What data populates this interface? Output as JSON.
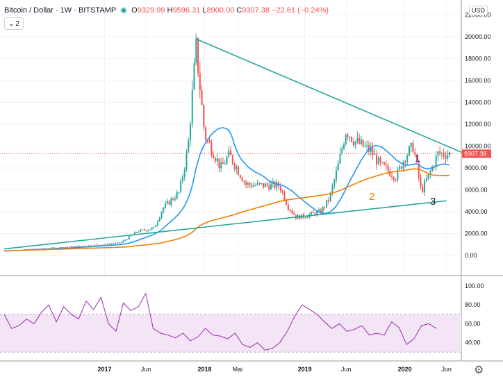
{
  "header": {
    "symbol": "Bitcoin / Dollar · 1W · BITSTAMP",
    "open_label": "O",
    "open": "9329.99",
    "high_label": "H",
    "high": "9596.31",
    "low_label": "L",
    "low": "8900.00",
    "close_label": "C",
    "close": "9307.38",
    "change": "−22.61 (−0.24%)",
    "collapse_label": "2",
    "currency": "USD"
  },
  "colors": {
    "up": "#26a69a",
    "down": "#ef5350",
    "ma20": "#2196f3",
    "ma200": "#f57c00",
    "trendline": "#26a69a",
    "rsi": "#9c27b0",
    "rsi_band": "#f3e5f5"
  },
  "icons": {
    "settings": "gear-icon"
  },
  "chart_data": [
    {
      "type": "candlestick",
      "title": "Bitcoin / Dollar · 1W · BITSTAMP",
      "ylim": [
        -1000,
        22000
      ],
      "y_ticks": [
        "0.00",
        "2000.00",
        "4000.00",
        "6000.00",
        "8000.00",
        "10000.00",
        "12000.00",
        "14000.00",
        "16000.00",
        "18000.00",
        "20000.00",
        "22000.00"
      ],
      "last_price_label": "9307.38",
      "price_keypoints": [
        [
          "2016-01",
          430
        ],
        [
          "2016-06",
          650
        ],
        [
          "2016-12",
          950
        ],
        [
          "2017-03",
          1150
        ],
        [
          "2017-05",
          2200
        ],
        [
          "2017-07",
          2500
        ],
        [
          "2017-08",
          4300
        ],
        [
          "2017-10",
          5800
        ],
        [
          "2017-11",
          9800
        ],
        [
          "2017-12",
          19000
        ],
        [
          "2018-01",
          11000
        ],
        [
          "2018-02",
          9500
        ],
        [
          "2018-03",
          8000
        ],
        [
          "2018-04",
          9200
        ],
        [
          "2018-06",
          6500
        ],
        [
          "2018-08",
          6400
        ],
        [
          "2018-10",
          6400
        ],
        [
          "2018-11",
          4500
        ],
        [
          "2018-12",
          3500
        ],
        [
          "2019-01",
          3600
        ],
        [
          "2019-03",
          4000
        ],
        [
          "2019-04",
          5200
        ],
        [
          "2019-05",
          8000
        ],
        [
          "2019-06",
          11500
        ],
        [
          "2019-07",
          10500
        ],
        [
          "2019-09",
          9500
        ],
        [
          "2019-10",
          8300
        ],
        [
          "2019-12",
          7200
        ],
        [
          "2020-01",
          9000
        ],
        [
          "2020-02",
          10000
        ],
        [
          "2020-03",
          5800
        ],
        [
          "2020-04",
          7500
        ],
        [
          "2020-05",
          9300
        ],
        [
          "2020-06",
          9300
        ]
      ],
      "overlays": [
        {
          "kind": "moving-average",
          "label": "1"
        },
        {
          "kind": "moving-average",
          "label": "2"
        },
        {
          "kind": "trendline",
          "label": "3",
          "points": [
            [
              "2016-01",
              600
            ],
            [
              "2020-06",
              5000
            ]
          ]
        },
        {
          "kind": "trendline",
          "points": [
            [
              "2017-12",
              19800
            ],
            [
              "2020-07",
              9000
            ]
          ]
        }
      ]
    },
    {
      "type": "line",
      "ylim": [
        25,
        100
      ],
      "y_ticks": [
        "40.00",
        "60.00",
        "80.00",
        "100.00"
      ],
      "band": [
        30,
        70
      ],
      "series": [
        {
          "values": [
            70,
            55,
            58,
            65,
            60,
            72,
            80,
            62,
            78,
            70,
            65,
            84,
            75,
            88,
            60,
            52,
            82,
            74,
            78,
            92,
            55,
            50,
            48,
            45,
            50,
            42,
            46,
            55,
            48,
            47,
            44,
            50,
            38,
            35,
            40,
            32,
            34,
            40,
            52,
            68,
            80,
            75,
            70,
            62,
            55,
            60,
            52,
            54,
            58,
            48,
            50,
            48,
            62,
            56,
            38,
            44,
            58,
            60,
            55
          ]
        }
      ]
    }
  ],
  "x_axis": {
    "ticks": [
      {
        "label": "2017",
        "date": "2017-01",
        "bold": true
      },
      {
        "label": "Jun",
        "date": "2017-06",
        "bold": false
      },
      {
        "label": "2018",
        "date": "2018-01",
        "bold": true
      },
      {
        "label": "Mai",
        "date": "2018-05",
        "bold": false
      },
      {
        "label": "2019",
        "date": "2019-01",
        "bold": true
      },
      {
        "label": "Jun",
        "date": "2019-06",
        "bold": false
      },
      {
        "label": "2020",
        "date": "2020-01",
        "bold": true
      },
      {
        "label": "Jun",
        "date": "2020-06",
        "bold": false
      }
    ]
  }
}
